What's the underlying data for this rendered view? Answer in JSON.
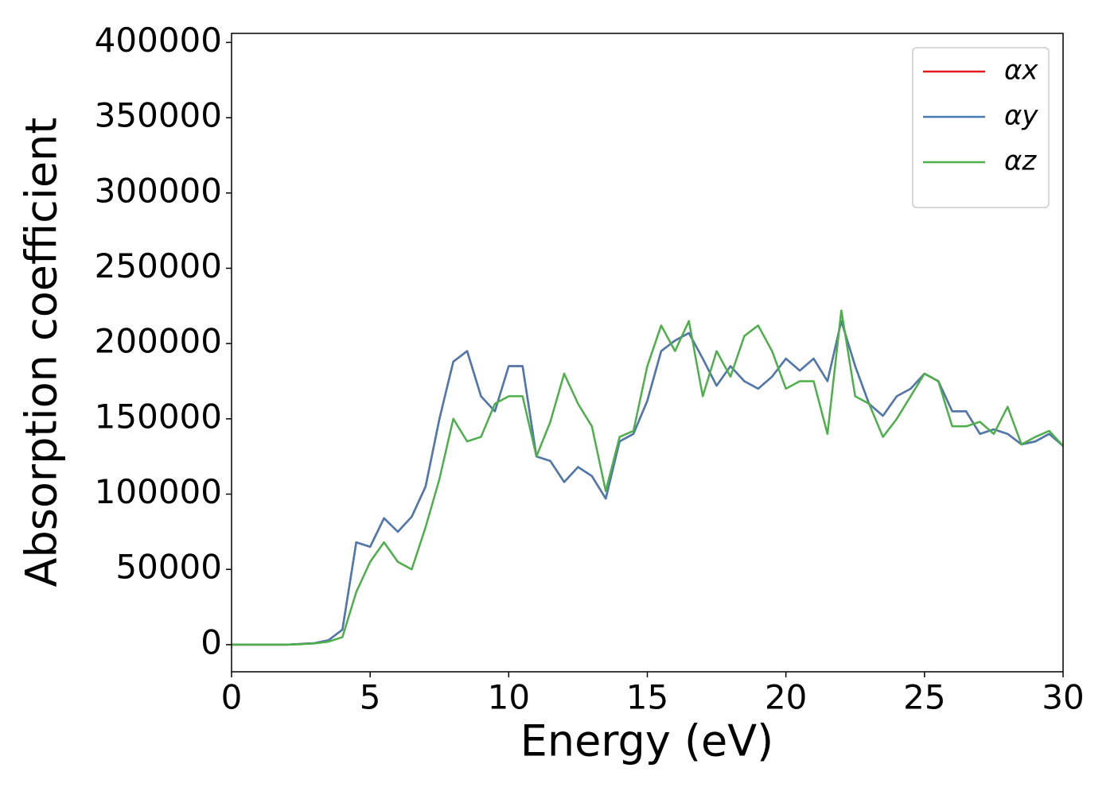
{
  "chart_data": {
    "type": "line",
    "xlabel": "Energy (eV)",
    "ylabel": "Absorption coefficient",
    "x": [
      0,
      0.5,
      1,
      1.5,
      2,
      2.5,
      3,
      3.5,
      4,
      4.5,
      5,
      5.5,
      6,
      6.5,
      7,
      7.5,
      8,
      8.5,
      9,
      9.5,
      10,
      10.5,
      11,
      11.5,
      12,
      12.5,
      13,
      13.5,
      14,
      14.5,
      15,
      15.5,
      16,
      16.5,
      17,
      17.5,
      18,
      18.5,
      19,
      19.5,
      20,
      20.5,
      21,
      21.5,
      22,
      22.5,
      23,
      23.5,
      24,
      24.5,
      25,
      25.5,
      26,
      26.5,
      27,
      27.5,
      28,
      28.5,
      29,
      29.5,
      30
    ],
    "series": [
      {
        "name": "αx",
        "color": "#e41a1c",
        "values": [
          0,
          0,
          0,
          0,
          0,
          500,
          1000,
          3000,
          10000,
          68000,
          65000,
          84000,
          75000,
          85000,
          105000,
          150000,
          188000,
          195000,
          165000,
          155000,
          185000,
          185000,
          125000,
          122000,
          108000,
          118000,
          112000,
          97000,
          135000,
          140000,
          162000,
          195000,
          202000,
          207000,
          190000,
          172000,
          185000,
          175000,
          170000,
          178000,
          190000,
          182000,
          190000,
          175000,
          215000,
          185000,
          160000,
          152000,
          165000,
          170000,
          180000,
          175000,
          155000,
          155000,
          140000,
          143000,
          140000,
          133000,
          135000,
          140000,
          132000
        ]
      },
      {
        "name": "αy",
        "color": "#4a7bb0",
        "values": [
          0,
          0,
          0,
          0,
          0,
          500,
          1000,
          3000,
          10000,
          68000,
          65000,
          84000,
          75000,
          85000,
          105000,
          150000,
          188000,
          195000,
          165000,
          155000,
          185000,
          185000,
          125000,
          122000,
          108000,
          118000,
          112000,
          97000,
          135000,
          140000,
          162000,
          195000,
          202000,
          207000,
          190000,
          172000,
          185000,
          175000,
          170000,
          178000,
          190000,
          182000,
          190000,
          175000,
          215000,
          185000,
          160000,
          152000,
          165000,
          170000,
          180000,
          175000,
          155000,
          155000,
          140000,
          143000,
          140000,
          133000,
          135000,
          140000,
          132000
        ]
      },
      {
        "name": "αz",
        "color": "#4daf4a",
        "values": [
          0,
          0,
          0,
          0,
          0,
          300,
          800,
          2000,
          5000,
          35000,
          55000,
          68000,
          55000,
          50000,
          78000,
          110000,
          150000,
          135000,
          138000,
          160000,
          165000,
          165000,
          125000,
          148000,
          180000,
          160000,
          145000,
          102000,
          138000,
          142000,
          185000,
          212000,
          195000,
          215000,
          165000,
          195000,
          178000,
          205000,
          212000,
          195000,
          170000,
          175000,
          175000,
          140000,
          222000,
          165000,
          160000,
          138000,
          150000,
          165000,
          180000,
          175000,
          145000,
          145000,
          148000,
          140000,
          158000,
          133000,
          138000,
          142000,
          132000
        ]
      }
    ],
    "xlim": [
      0,
      30
    ],
    "xticks": [
      0,
      5,
      10,
      15,
      20,
      25,
      30
    ],
    "ylim": [
      -18000,
      406000
    ],
    "yticks": [
      0,
      50000,
      100000,
      150000,
      200000,
      250000,
      300000,
      350000,
      400000
    ],
    "legend": "upper right",
    "grid": false
  }
}
